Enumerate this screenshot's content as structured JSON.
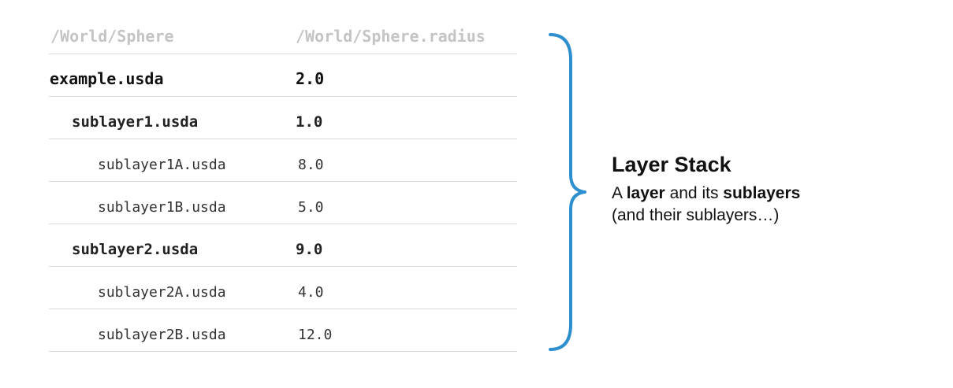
{
  "header": {
    "path": "/World/Sphere",
    "attribute": "/World/Sphere.radius"
  },
  "rows": [
    {
      "layer": "example.usda",
      "value": "2.0"
    },
    {
      "layer": "sublayer1.usda",
      "value": "1.0"
    },
    {
      "layer": "sublayer1A.usda",
      "value": "8.0"
    },
    {
      "layer": "sublayer1B.usda",
      "value": "5.0"
    },
    {
      "layer": "sublayer2.usda",
      "value": "9.0"
    },
    {
      "layer": "sublayer2A.usda",
      "value": "4.0"
    },
    {
      "layer": "sublayer2B.usda",
      "value": "12.0"
    }
  ],
  "brace_color": "#2e8fcf",
  "annotation": {
    "title": "Layer Stack",
    "line1_a": "A ",
    "line1_b": "layer",
    "line1_c": " and its ",
    "line1_d": "sublayers",
    "line2": "(and their sublayers…)"
  }
}
